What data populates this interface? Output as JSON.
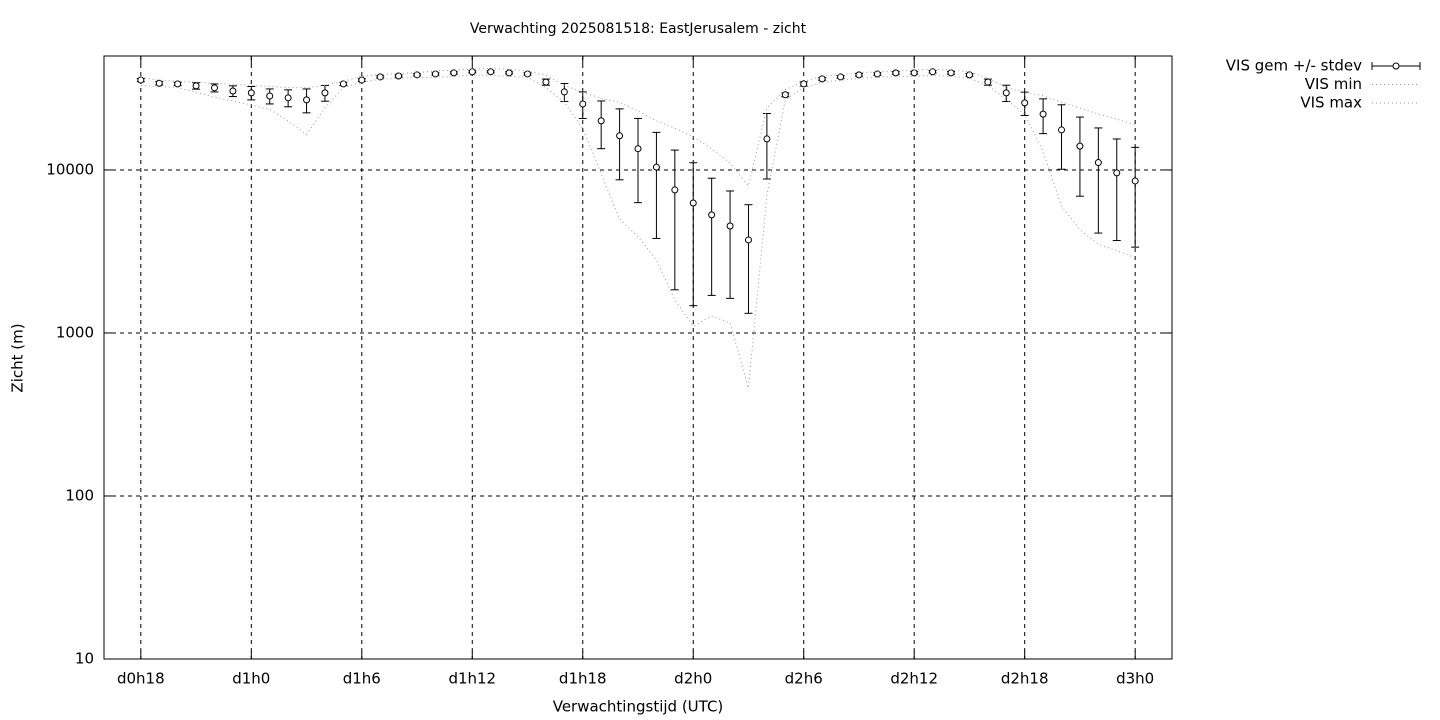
{
  "chart_data": {
    "type": "errorbar-line",
    "title": "Verwachting 2025081518: EastJerusalem - zicht",
    "x_label": "Verwachtingstijd (UTC)",
    "y_label": "Zicht (m)",
    "log_y": true,
    "grid": true,
    "legend": "outside-top-right",
    "x": [
      18,
      19,
      20,
      21,
      22,
      23,
      24,
      25,
      26,
      27,
      28,
      29,
      30,
      31,
      32,
      33,
      34,
      35,
      36,
      37,
      38,
      39,
      40,
      41,
      42,
      43,
      44,
      45,
      46,
      47,
      48,
      49,
      50,
      51,
      52,
      53,
      54,
      55,
      56,
      57,
      58,
      59,
      60,
      61,
      62,
      63,
      64,
      65,
      66,
      67,
      68,
      69,
      70,
      71,
      72
    ],
    "xlim": [
      16,
      74
    ],
    "xticks": [
      {
        "value": 18,
        "label": "d0h18"
      },
      {
        "value": 24,
        "label": "d1h0"
      },
      {
        "value": 30,
        "label": "d1h6"
      },
      {
        "value": 36,
        "label": "d1h12"
      },
      {
        "value": 42,
        "label": "d1h18"
      },
      {
        "value": 48,
        "label": "d2h0"
      },
      {
        "value": 54,
        "label": "d2h6"
      },
      {
        "value": 60,
        "label": "d2h12"
      },
      {
        "value": 66,
        "label": "d2h18"
      },
      {
        "value": 72,
        "label": "d3h0"
      }
    ],
    "ylim": [
      10,
      50000
    ],
    "yticks": [
      10,
      100,
      1000,
      10000
    ],
    "series": [
      {
        "name": "VIS gem +/- stdev",
        "color": "#000000",
        "values": [
          35600,
          34000,
          33700,
          32800,
          31900,
          30500,
          29700,
          28400,
          27700,
          26900,
          29700,
          33700,
          35600,
          37200,
          37700,
          38300,
          38800,
          39400,
          40000,
          40000,
          39400,
          38800,
          34600,
          30100,
          25400,
          20000,
          16200,
          13500,
          10400,
          7540,
          6270,
          5300,
          4530,
          3720,
          15500,
          28900,
          33700,
          36200,
          37200,
          38300,
          38800,
          39400,
          39400,
          40000,
          39400,
          38300,
          34600,
          29700,
          25800,
          22000,
          17600,
          14000,
          11100,
          9590,
          8560
        ],
        "errors": [
          800,
          800,
          800,
          1500,
          1800,
          2300,
          2800,
          3000,
          3300,
          4500,
          3300,
          800,
          700,
          600,
          600,
          600,
          600,
          600,
          600,
          600,
          600,
          600,
          1500,
          3800,
          4700,
          6500,
          7500,
          7200,
          6600,
          5700,
          4800,
          3600,
          2900,
          2400,
          6700,
          800,
          1000,
          700,
          700,
          700,
          700,
          700,
          700,
          700,
          700,
          700,
          1500,
          3400,
          4200,
          5300,
          7500,
          7100,
          7000,
          5900,
          5200
        ]
      },
      {
        "name": "VIS min",
        "color": "#999999",
        "values": [
          33000,
          32500,
          32000,
          30000,
          28000,
          26500,
          25000,
          23500,
          20000,
          16500,
          24000,
          32000,
          34500,
          36000,
          36500,
          37000,
          37000,
          37500,
          38000,
          38000,
          37500,
          37000,
          32000,
          26000,
          18000,
          9500,
          5000,
          3900,
          2800,
          1600,
          1100,
          1270,
          1150,
          460,
          7000,
          27000,
          32000,
          34500,
          35500,
          36500,
          37000,
          37500,
          37500,
          38000,
          37500,
          36500,
          33000,
          27000,
          22000,
          13000,
          6000,
          4300,
          3500,
          3200,
          2900
        ]
      },
      {
        "name": "VIS max",
        "color": "#999999",
        "values": [
          37000,
          35500,
          35000,
          34500,
          34000,
          33500,
          33000,
          32500,
          32000,
          32000,
          33000,
          35000,
          37500,
          38500,
          39000,
          39500,
          40500,
          41000,
          41500,
          42000,
          41500,
          40500,
          38000,
          33000,
          30000,
          27500,
          26000,
          23000,
          20000,
          18000,
          16000,
          13500,
          11000,
          8000,
          24000,
          31000,
          35000,
          37500,
          38500,
          39500,
          40000,
          40500,
          41000,
          41500,
          41000,
          40000,
          36500,
          32000,
          30000,
          28500,
          26000,
          24000,
          22000,
          20500,
          19000
        ]
      }
    ]
  }
}
